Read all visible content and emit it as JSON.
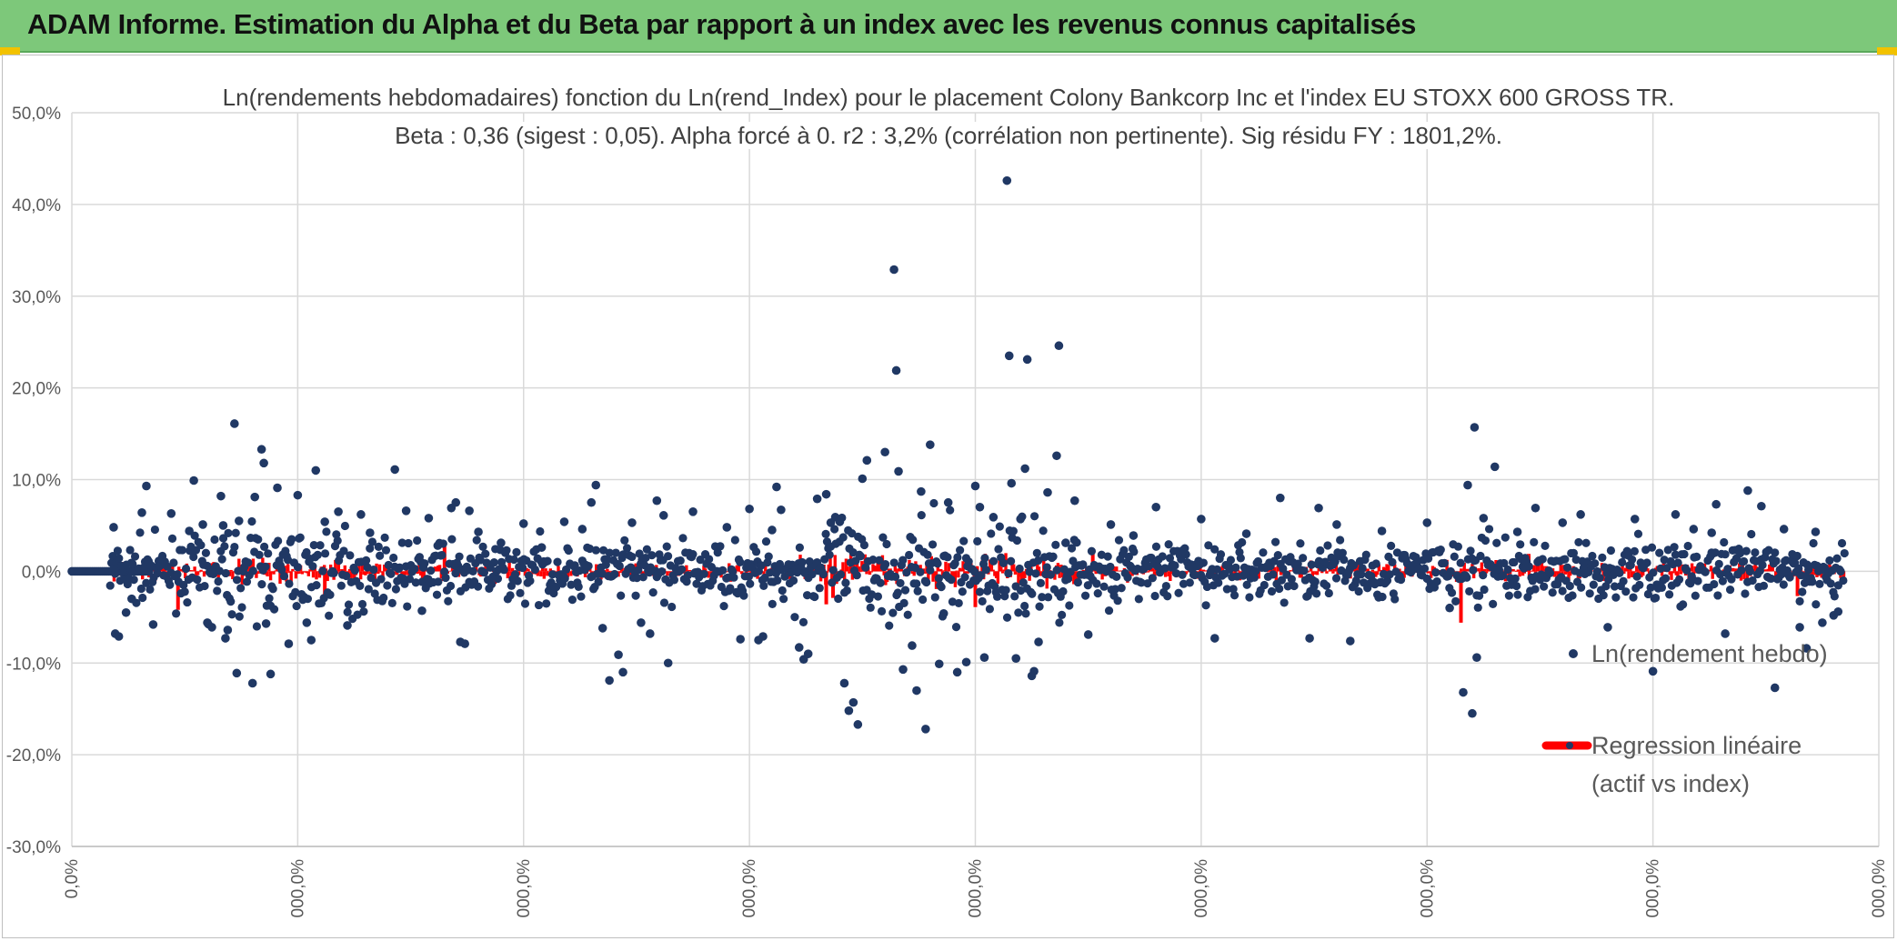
{
  "header": {
    "title": "ADAM Informe. Estimation du Alpha et du Beta par rapport à un index avec les revenus connus capitalisés"
  },
  "colors": {
    "banner": "#7dc87a",
    "points": "#203864",
    "regression": "#ff0000",
    "grid": "#d9d9d9"
  },
  "chart_data": {
    "type": "scatter",
    "title": "Ln(rendements hebdomadaires) fonction du Ln(rend_Index) pour le placement Colony Bankcorp Inc et l'index EU STOXX 600 GROSS TR.",
    "subtitle": "Beta : 0,36 (sigest : 0,05). Alpha forcé à 0. r2 : 3,2% (corrélation non pertinente). Sig résidu FY : 1801,2%.",
    "xlabel": "",
    "ylabel": "",
    "ylim": [
      -30,
      50
    ],
    "xlim": [
      0,
      800
    ],
    "grid": true,
    "legend_position": "right",
    "y_ticks": [
      "50,0%",
      "40,0%",
      "30,0%",
      "20,0%",
      "10,0%",
      "0,0%",
      "-10,0%",
      "-20,0%",
      "-30,0%"
    ],
    "x_ticks": [
      "0,0%",
      "000,0%",
      "000,0%",
      "000,0%",
      "000,0%",
      "000,0%",
      "000,0%",
      "000,0%",
      "000,0%"
    ],
    "series": [
      {
        "name": "Ln(rendement hebdo)",
        "kind": "points",
        "outliers": [
          [
            18.5,
            4.8
          ],
          [
            19.2,
            -6.8
          ],
          [
            20.8,
            -7.1
          ],
          [
            24,
            -4.5
          ],
          [
            26.5,
            -3
          ],
          [
            31,
            6.4
          ],
          [
            33,
            9.3
          ],
          [
            36,
            -5.8
          ],
          [
            44,
            6.3
          ],
          [
            52,
            4.4
          ],
          [
            54,
            9.9
          ],
          [
            58,
            5.1
          ],
          [
            60,
            -5.6
          ],
          [
            62,
            -6.1
          ],
          [
            66,
            8.2
          ],
          [
            67,
            5
          ],
          [
            68,
            -7.3
          ],
          [
            69,
            -6.4
          ],
          [
            72,
            16.1
          ],
          [
            73,
            -11.1
          ],
          [
            74,
            5.5
          ],
          [
            80,
            -12.2
          ],
          [
            81,
            8.1
          ],
          [
            84,
            13.3
          ],
          [
            85,
            11.8
          ],
          [
            86,
            -5.7
          ],
          [
            88,
            -11.2
          ],
          [
            91,
            9.1
          ],
          [
            96,
            -7.9
          ],
          [
            100,
            8.3
          ],
          [
            104,
            -5.6
          ],
          [
            106,
            -7.5
          ],
          [
            108,
            11
          ],
          [
            112,
            5.4
          ],
          [
            118,
            6.5
          ],
          [
            122,
            -5.9
          ],
          [
            128,
            6.2
          ],
          [
            132,
            4.2
          ],
          [
            143,
            11.1
          ],
          [
            148,
            6.6
          ],
          [
            155,
            -4.3
          ],
          [
            158,
            5.8
          ],
          [
            162,
            2.8
          ],
          [
            168,
            6.9
          ],
          [
            170,
            7.5
          ],
          [
            172,
            -7.7
          ],
          [
            174,
            -7.9
          ],
          [
            176,
            6.6
          ],
          [
            180,
            4.3
          ],
          [
            190,
            3.1
          ],
          [
            200,
            5.2
          ],
          [
            208,
            2.6
          ],
          [
            218,
            5.4
          ],
          [
            226,
            4.6
          ],
          [
            230,
            7.5
          ],
          [
            232,
            9.4
          ],
          [
            235,
            -6.2
          ],
          [
            238,
            -11.9
          ],
          [
            242,
            -9.1
          ],
          [
            244,
            -11
          ],
          [
            248,
            5.3
          ],
          [
            252,
            -5.6
          ],
          [
            256,
            -6.8
          ],
          [
            259,
            7.7
          ],
          [
            262,
            6.1
          ],
          [
            264,
            -10
          ],
          [
            275,
            6.5
          ],
          [
            290,
            4.8
          ],
          [
            300,
            6.8
          ],
          [
            304,
            -7.5
          ],
          [
            306,
            -7.1
          ],
          [
            310,
            4.5
          ],
          [
            312,
            9.2
          ],
          [
            314,
            6.7
          ],
          [
            322,
            -8.3
          ],
          [
            324,
            -9.6
          ],
          [
            326,
            -9
          ],
          [
            330,
            7.9
          ],
          [
            334,
            8.4
          ],
          [
            336,
            5.3
          ],
          [
            338,
            5.9
          ],
          [
            340,
            5.4
          ],
          [
            342,
            -12.2
          ],
          [
            344,
            -15.2
          ],
          [
            346,
            -14.3
          ],
          [
            348,
            -16.7
          ],
          [
            350,
            10.1
          ],
          [
            352,
            12.1
          ],
          [
            360,
            13
          ],
          [
            364,
            32.9
          ],
          [
            365,
            21.9
          ],
          [
            366,
            10.9
          ],
          [
            368,
            -10.7
          ],
          [
            372,
            -8.1
          ],
          [
            374,
            -13
          ],
          [
            376,
            8.7
          ],
          [
            378,
            -17.2
          ],
          [
            380,
            13.8
          ],
          [
            384,
            -10.1
          ],
          [
            388,
            7.5
          ],
          [
            392,
            -11
          ],
          [
            396,
            -9.9
          ],
          [
            400,
            9.3
          ],
          [
            402,
            7
          ],
          [
            404,
            -9.4
          ],
          [
            408,
            5.9
          ],
          [
            414,
            42.6
          ],
          [
            415,
            23.5
          ],
          [
            416,
            9.6
          ],
          [
            418,
            -9.5
          ],
          [
            420,
            5.7
          ],
          [
            422,
            11.2
          ],
          [
            423,
            23.1
          ],
          [
            425,
            -11.4
          ],
          [
            426,
            -10.9
          ],
          [
            428,
            -7.7
          ],
          [
            432,
            8.6
          ],
          [
            436,
            12.6
          ],
          [
            437,
            24.6
          ],
          [
            440,
            3.1
          ],
          [
            444,
            7.7
          ],
          [
            450,
            -6.9
          ],
          [
            460,
            5.1
          ],
          [
            470,
            3.9
          ],
          [
            480,
            7
          ],
          [
            492,
            2.3
          ],
          [
            500,
            5.7
          ],
          [
            506,
            -7.3
          ],
          [
            520,
            4.1
          ],
          [
            535,
            8
          ],
          [
            548,
            -7.3
          ],
          [
            552,
            6.9
          ],
          [
            560,
            5.1
          ],
          [
            566,
            -7.6
          ],
          [
            580,
            4.4
          ],
          [
            600,
            5.3
          ],
          [
            610,
            -4
          ],
          [
            616,
            -13.2
          ],
          [
            618,
            9.4
          ],
          [
            620,
            -15.5
          ],
          [
            621,
            15.7
          ],
          [
            622,
            -9.4
          ],
          [
            625,
            5.8
          ],
          [
            630,
            11.4
          ],
          [
            640,
            4.3
          ],
          [
            648,
            6.9
          ],
          [
            660,
            5.3
          ],
          [
            668,
            6.2
          ],
          [
            680,
            -6.1
          ],
          [
            692,
            5.7
          ],
          [
            700,
            -10.9
          ],
          [
            710,
            6.2
          ],
          [
            718,
            4.6
          ],
          [
            728,
            7.3
          ],
          [
            732,
            -6.8
          ],
          [
            742,
            8.8
          ],
          [
            748,
            7.1
          ],
          [
            754,
            -12.7
          ],
          [
            758,
            4.6
          ],
          [
            765,
            -6.1
          ],
          [
            768,
            -8.4
          ],
          [
            772,
            4.3
          ],
          [
            780,
            -4.8
          ],
          [
            782,
            -4.4
          ],
          [
            775,
            -5.6
          ],
          [
            726,
            4.2
          ],
          [
            296,
            -7.4
          ],
          [
            386,
            -4.6
          ]
        ]
      },
      {
        "name": "Regression linéaire (actif vs index)",
        "kind": "line",
        "beta": 0.36,
        "alpha": 0
      }
    ],
    "legend": [
      {
        "label": "Ln(rendement hebdo)"
      },
      {
        "label": "Regression linéaire"
      },
      {
        "label": "(actif vs index)"
      }
    ]
  }
}
